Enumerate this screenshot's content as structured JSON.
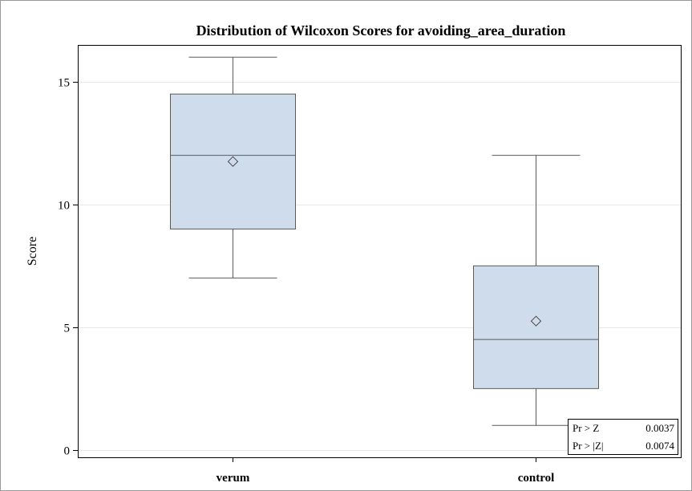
{
  "chart_data": {
    "type": "box",
    "title": "Distribution of Wilcoxon Scores for avoiding_area_duration",
    "xlabel": "",
    "ylabel": "Score",
    "ylim": [
      -0.3,
      16.5
    ],
    "yticks": [
      0,
      5,
      10,
      15
    ],
    "grid": "horizontal",
    "categories": [
      "verum",
      "control"
    ],
    "boxes": [
      {
        "category": "verum",
        "min": 7.0,
        "q1": 9.0,
        "median": 12.0,
        "q3": 14.5,
        "max": 16.0,
        "mean": 11.75
      },
      {
        "category": "control",
        "min": 1.0,
        "q1": 2.5,
        "median": 4.5,
        "q3": 7.5,
        "max": 12.0,
        "mean": 5.25
      }
    ],
    "inset_table": [
      {
        "label": "Pr > Z",
        "value": "0.0037"
      },
      {
        "label": "Pr > |Z|",
        "value": "0.0074"
      }
    ],
    "colors": {
      "box_fill": "#cfdcec",
      "box_stroke": "#5a5a5a",
      "grid": "#e8e8e8",
      "frame": "#000000"
    }
  }
}
